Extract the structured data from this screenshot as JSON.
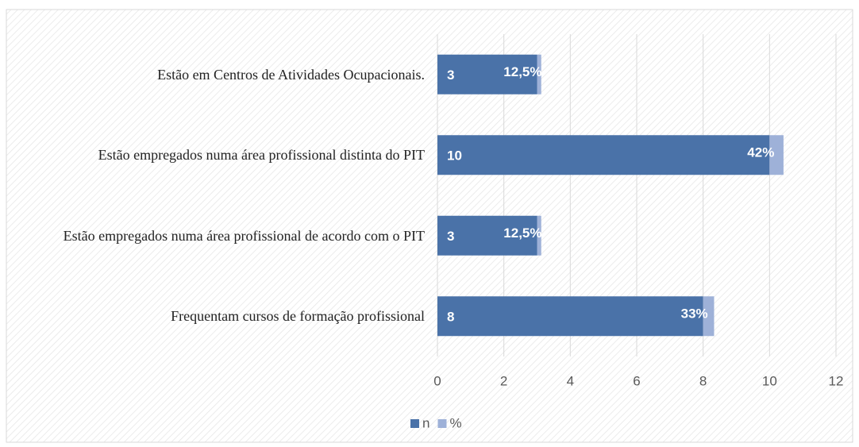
{
  "chart_data": {
    "type": "stacked_barh",
    "categories": [
      "Estão em Centros de Atividades Ocupacionais.",
      "Estão empregados numa área profissional distinta do PIT",
      "Estão empregados numa área profissional de acordo com o PIT",
      "Frequentam cursos de formação profissional"
    ],
    "series": [
      {
        "name": "n",
        "color": "#4a72a8",
        "values": [
          3,
          10,
          3,
          8
        ]
      },
      {
        "name": "%",
        "color": "#9eb1d8",
        "values": [
          0.125,
          0.42,
          0.125,
          0.33
        ],
        "value_labels": [
          "12,5%",
          "42%",
          "12,5%",
          "33%"
        ]
      }
    ],
    "xlim": [
      0,
      12
    ],
    "xticks": [
      0,
      2,
      4,
      6,
      8,
      10,
      12
    ],
    "grid": true,
    "legend": "bottom"
  }
}
